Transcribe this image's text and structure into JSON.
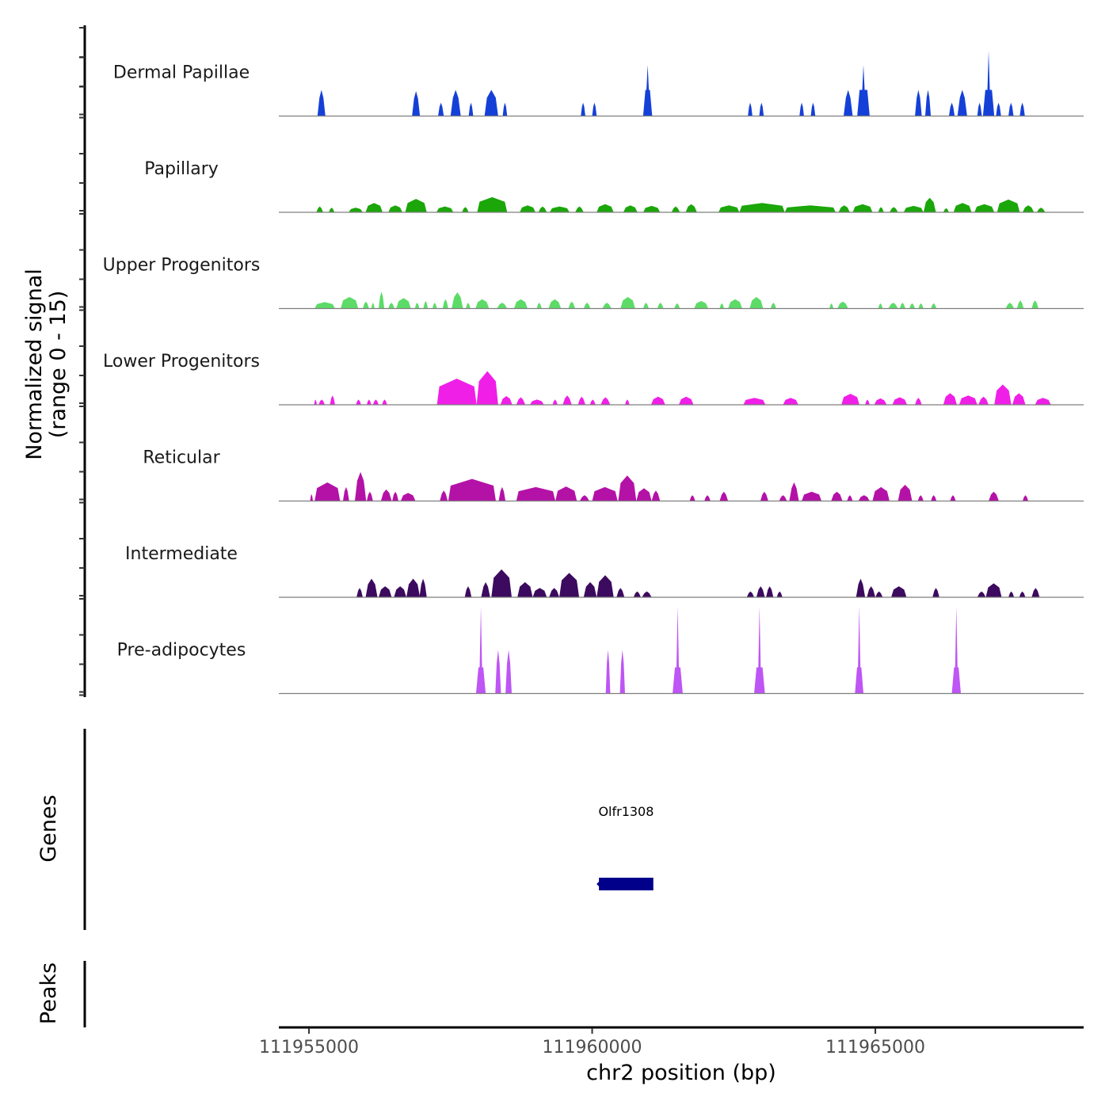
{
  "chart_data": {
    "type": "area",
    "title": "",
    "ylabel": "Normalized signal",
    "ylabel_sub": "(range 0 - 15)",
    "xlabel": "chr2 position (bp)",
    "xlim": [
      111954468,
      111968678
    ],
    "ylim": [
      0,
      15
    ],
    "x_ticks": [
      111955000,
      111960000,
      111965000
    ],
    "x_tick_labels": [
      "111955000",
      "111960000",
      "111965000"
    ],
    "grid": false,
    "legend": "none",
    "tracks": [
      {
        "name": "Dermal Papillae",
        "color": "#1540D8",
        "peaks": [
          [
            111955150,
            111955290,
            4.5
          ],
          [
            111956820,
            111956960,
            4.3
          ],
          [
            111957280,
            111957380,
            2.3
          ],
          [
            111957500,
            111957680,
            4.5
          ],
          [
            111957820,
            111957900,
            2.3
          ],
          [
            111958100,
            111958340,
            4.5
          ],
          [
            111958420,
            111958500,
            2.3
          ],
          [
            111959800,
            111959880,
            2.3
          ],
          [
            111960000,
            111960080,
            2.3
          ],
          [
            111960900,
            111961060,
            8.8
          ],
          [
            111962750,
            111962830,
            2.3
          ],
          [
            111962950,
            111963030,
            2.3
          ],
          [
            111963660,
            111963740,
            2.3
          ],
          [
            111963860,
            111963940,
            2.3
          ],
          [
            111964440,
            111964600,
            4.5
          ],
          [
            111964680,
            111964900,
            8.8
          ],
          [
            111965700,
            111965820,
            4.5
          ],
          [
            111965880,
            111965980,
            4.5
          ],
          [
            111966300,
            111966400,
            2.3
          ],
          [
            111966450,
            111966620,
            4.5
          ],
          [
            111966800,
            111966880,
            2.3
          ],
          [
            111966900,
            111967100,
            11.2
          ],
          [
            111967130,
            111967220,
            2.3
          ],
          [
            111967350,
            111967440,
            2.3
          ],
          [
            111967550,
            111967640,
            2.3
          ]
        ]
      },
      {
        "name": "Papillary",
        "color": "#1BA60A",
        "peaks": [
          [
            111955130,
            111955250,
            1.0
          ],
          [
            111955350,
            111955450,
            0.8
          ],
          [
            111955700,
            111955950,
            0.8
          ],
          [
            111956000,
            111956300,
            1.6
          ],
          [
            111956400,
            111956650,
            1.2
          ],
          [
            111956700,
            111957080,
            2.3
          ],
          [
            111957250,
            111957550,
            1.0
          ],
          [
            111957700,
            111957820,
            0.9
          ],
          [
            111957970,
            111958500,
            2.6
          ],
          [
            111958720,
            111959000,
            1.2
          ],
          [
            111959050,
            111959200,
            1.0
          ],
          [
            111959250,
            111959600,
            1.0
          ],
          [
            111959700,
            111959850,
            1.0
          ],
          [
            111960080,
            111960380,
            1.4
          ],
          [
            111960550,
            111960800,
            1.2
          ],
          [
            111960900,
            111961200,
            1.1
          ],
          [
            111961400,
            111961550,
            1.0
          ],
          [
            111961650,
            111961850,
            1.4
          ],
          [
            111962230,
            111962600,
            1.2
          ],
          [
            111962600,
            111963400,
            1.6
          ],
          [
            111963400,
            111964300,
            1.2
          ],
          [
            111964350,
            111964550,
            1.2
          ],
          [
            111964600,
            111964950,
            1.4
          ],
          [
            111965050,
            111965150,
            0.9
          ],
          [
            111965250,
            111965400,
            0.9
          ],
          [
            111965500,
            111965850,
            1.1
          ],
          [
            111965850,
            111966070,
            2.5
          ],
          [
            111966200,
            111966300,
            0.7
          ],
          [
            111966380,
            111966700,
            1.6
          ],
          [
            111966750,
            111967100,
            1.4
          ],
          [
            111967150,
            111967550,
            2.2
          ],
          [
            111967600,
            111967800,
            1.2
          ],
          [
            111967850,
            111968000,
            0.8
          ]
        ]
      },
      {
        "name": "Upper Progenitors",
        "color": "#5CDB67",
        "peaks": [
          [
            111955100,
            111955460,
            1.1
          ],
          [
            111955560,
            111955870,
            2.0
          ],
          [
            111955950,
            111956060,
            1.2
          ],
          [
            111956100,
            111956160,
            1.0
          ],
          [
            111956230,
            111956330,
            2.9
          ],
          [
            111956400,
            111956510,
            1.0
          ],
          [
            111956540,
            111956800,
            1.8
          ],
          [
            111956870,
            111956950,
            1.0
          ],
          [
            111957020,
            111957100,
            1.3
          ],
          [
            111957180,
            111957260,
            1.0
          ],
          [
            111957360,
            111957460,
            1.6
          ],
          [
            111957520,
            111957720,
            2.8
          ],
          [
            111957770,
            111957850,
            1.0
          ],
          [
            111957940,
            111958180,
            1.6
          ],
          [
            111958320,
            111958500,
            1.0
          ],
          [
            111958620,
            111958860,
            1.6
          ],
          [
            111959020,
            111959110,
            1.0
          ],
          [
            111959230,
            111959450,
            1.6
          ],
          [
            111959580,
            111959700,
            1.2
          ],
          [
            111959850,
            111959970,
            1.0
          ],
          [
            111960180,
            111960340,
            1.0
          ],
          [
            111960500,
            111960760,
            2.0
          ],
          [
            111960900,
            111961000,
            1.0
          ],
          [
            111961150,
            111961260,
            1.0
          ],
          [
            111961450,
            111961550,
            0.9
          ],
          [
            111961800,
            111962050,
            1.3
          ],
          [
            111962250,
            111962330,
            0.9
          ],
          [
            111962400,
            111962650,
            1.6
          ],
          [
            111962780,
            111963020,
            2.0
          ],
          [
            111963150,
            111963250,
            1.0
          ],
          [
            111964190,
            111964260,
            0.9
          ],
          [
            111964330,
            111964520,
            1.2
          ],
          [
            111965050,
            111965130,
            0.9
          ],
          [
            111965230,
            111965400,
            1.0
          ],
          [
            111965430,
            111965530,
            1.0
          ],
          [
            111965600,
            111965700,
            0.9
          ],
          [
            111965760,
            111965850,
            0.9
          ],
          [
            111965980,
            111966080,
            0.9
          ],
          [
            111967300,
            111967450,
            1.0
          ],
          [
            111967500,
            111967620,
            1.4
          ],
          [
            111967760,
            111967880,
            1.4
          ]
        ]
      },
      {
        "name": "Lower Progenitors",
        "color": "#F01FE8",
        "peaks": [
          [
            111955090,
            111955140,
            0.9
          ],
          [
            111955170,
            111955280,
            0.9
          ],
          [
            111955370,
            111955460,
            1.6
          ],
          [
            111955830,
            111955920,
            0.9
          ],
          [
            111956020,
            111956100,
            0.9
          ],
          [
            111956130,
            111956230,
            0.9
          ],
          [
            111956290,
            111956380,
            0.9
          ],
          [
            111957260,
            111957960,
            4.5
          ],
          [
            111957960,
            111958340,
            5.8
          ],
          [
            111958380,
            111958590,
            1.5
          ],
          [
            111958660,
            111958820,
            1.3
          ],
          [
            111958900,
            111959150,
            0.9
          ],
          [
            111959300,
            111959390,
            0.9
          ],
          [
            111959480,
            111959640,
            1.6
          ],
          [
            111959750,
            111959880,
            1.4
          ],
          [
            111959960,
            111960060,
            0.9
          ],
          [
            111960150,
            111960320,
            1.3
          ],
          [
            111960580,
            111960660,
            0.9
          ],
          [
            111961040,
            111961290,
            1.4
          ],
          [
            111961530,
            111961790,
            1.4
          ],
          [
            111962670,
            111963060,
            1.2
          ],
          [
            111963370,
            111963640,
            1.2
          ],
          [
            111964400,
            111964720,
            1.9
          ],
          [
            111964820,
            111964900,
            0.9
          ],
          [
            111964980,
            111965200,
            1.1
          ],
          [
            111965300,
            111965560,
            1.3
          ],
          [
            111965700,
            111965820,
            1.2
          ],
          [
            111966200,
            111966440,
            2.0
          ],
          [
            111966480,
            111966800,
            1.6
          ],
          [
            111966820,
            111967000,
            1.4
          ],
          [
            111967100,
            111967400,
            3.5
          ],
          [
            111967420,
            111967650,
            2.0
          ],
          [
            111967820,
            111968100,
            1.2
          ]
        ]
      },
      {
        "name": "Reticular",
        "color": "#B412A7",
        "peaks": [
          [
            111955020,
            111955070,
            1.2
          ],
          [
            111955100,
            111955550,
            3.2
          ],
          [
            111955600,
            111955710,
            2.4
          ],
          [
            111955810,
            111956010,
            5.0
          ],
          [
            111956020,
            111956130,
            1.6
          ],
          [
            111956270,
            111956460,
            2.0
          ],
          [
            111956470,
            111956580,
            1.6
          ],
          [
            111956620,
            111956880,
            1.4
          ],
          [
            111957310,
            111957450,
            1.8
          ],
          [
            111957460,
            111958300,
            3.8
          ],
          [
            111958350,
            111958470,
            2.4
          ],
          [
            111958660,
            111959350,
            2.4
          ],
          [
            111959350,
            111959730,
            2.5
          ],
          [
            111959780,
            111959950,
            1.0
          ],
          [
            111960000,
            111960450,
            2.4
          ],
          [
            111960460,
            111960780,
            4.4
          ],
          [
            111960780,
            111961050,
            2.2
          ],
          [
            111961050,
            111961200,
            1.8
          ],
          [
            111961720,
            111961820,
            1.0
          ],
          [
            111961980,
            111962090,
            1.0
          ],
          [
            111962250,
            111962400,
            1.6
          ],
          [
            111962970,
            111963110,
            1.6
          ],
          [
            111963300,
            111963440,
            1.0
          ],
          [
            111963480,
            111963650,
            3.2
          ],
          [
            111963700,
            111964050,
            1.6
          ],
          [
            111964220,
            111964420,
            1.6
          ],
          [
            111964500,
            111964600,
            1.0
          ],
          [
            111964700,
            111964900,
            1.0
          ],
          [
            111964950,
            111965250,
            2.4
          ],
          [
            111965400,
            111965650,
            2.8
          ],
          [
            111965750,
            111965850,
            1.0
          ],
          [
            111965980,
            111966080,
            1.0
          ],
          [
            111966320,
            111966420,
            1.0
          ],
          [
            111967000,
            111967180,
            1.6
          ],
          [
            111967600,
            111967700,
            1.0
          ]
        ]
      },
      {
        "name": "Intermediate",
        "color": "#3C0A5E",
        "peaks": [
          [
            111955840,
            111955950,
            1.6
          ],
          [
            111956000,
            111956210,
            3.2
          ],
          [
            111956230,
            111956460,
            1.9
          ],
          [
            111956500,
            111956720,
            1.9
          ],
          [
            111956720,
            111956960,
            3.2
          ],
          [
            111956950,
            111957080,
            3.2
          ],
          [
            111957750,
            111957870,
            1.9
          ],
          [
            111958040,
            111958200,
            2.6
          ],
          [
            111958220,
            111958580,
            4.8
          ],
          [
            111958680,
            111958950,
            2.6
          ],
          [
            111958950,
            111959200,
            1.6
          ],
          [
            111959240,
            111959420,
            1.6
          ],
          [
            111959420,
            111959770,
            4.2
          ],
          [
            111959850,
            111960080,
            2.6
          ],
          [
            111960080,
            111960380,
            3.8
          ],
          [
            111960430,
            111960570,
            1.6
          ],
          [
            111960730,
            111960860,
            1.0
          ],
          [
            111960880,
            111961050,
            1.0
          ],
          [
            111962730,
            111962860,
            1.0
          ],
          [
            111962900,
            111963050,
            1.9
          ],
          [
            111963070,
            111963200,
            1.9
          ],
          [
            111963260,
            111963360,
            1.0
          ],
          [
            111964660,
            111964820,
            3.2
          ],
          [
            111964850,
            111965000,
            1.9
          ],
          [
            111965000,
            111965130,
            1.0
          ],
          [
            111965280,
            111965550,
            1.9
          ],
          [
            111966010,
            111966130,
            1.6
          ],
          [
            111966800,
            111966950,
            1.0
          ],
          [
            111966950,
            111967230,
            2.4
          ],
          [
            111967350,
            111967450,
            1.0
          ],
          [
            111967540,
            111967650,
            1.0
          ],
          [
            111967760,
            111967900,
            1.6
          ]
        ]
      },
      {
        "name": "Pre-adipocytes",
        "color": "#BE55F5",
        "peaks": [
          [
            111957950,
            111958120,
            15.0
          ],
          [
            111958290,
            111958390,
            7.5
          ],
          [
            111958470,
            111958580,
            7.5
          ],
          [
            111960240,
            111960320,
            7.5
          ],
          [
            111960490,
            111960580,
            7.5
          ],
          [
            111961420,
            111961600,
            15.0
          ],
          [
            111962860,
            111963050,
            15.0
          ],
          [
            111964640,
            111964790,
            15.0
          ],
          [
            111966350,
            111966510,
            15.0
          ]
        ]
      }
    ],
    "genes": [
      {
        "name": "Olfr1308",
        "start": 111960120,
        "end": 111961080,
        "strand": "-",
        "color": "#00008B"
      }
    ],
    "peaks_track_label": "Peaks",
    "genes_track_label": "Genes"
  }
}
